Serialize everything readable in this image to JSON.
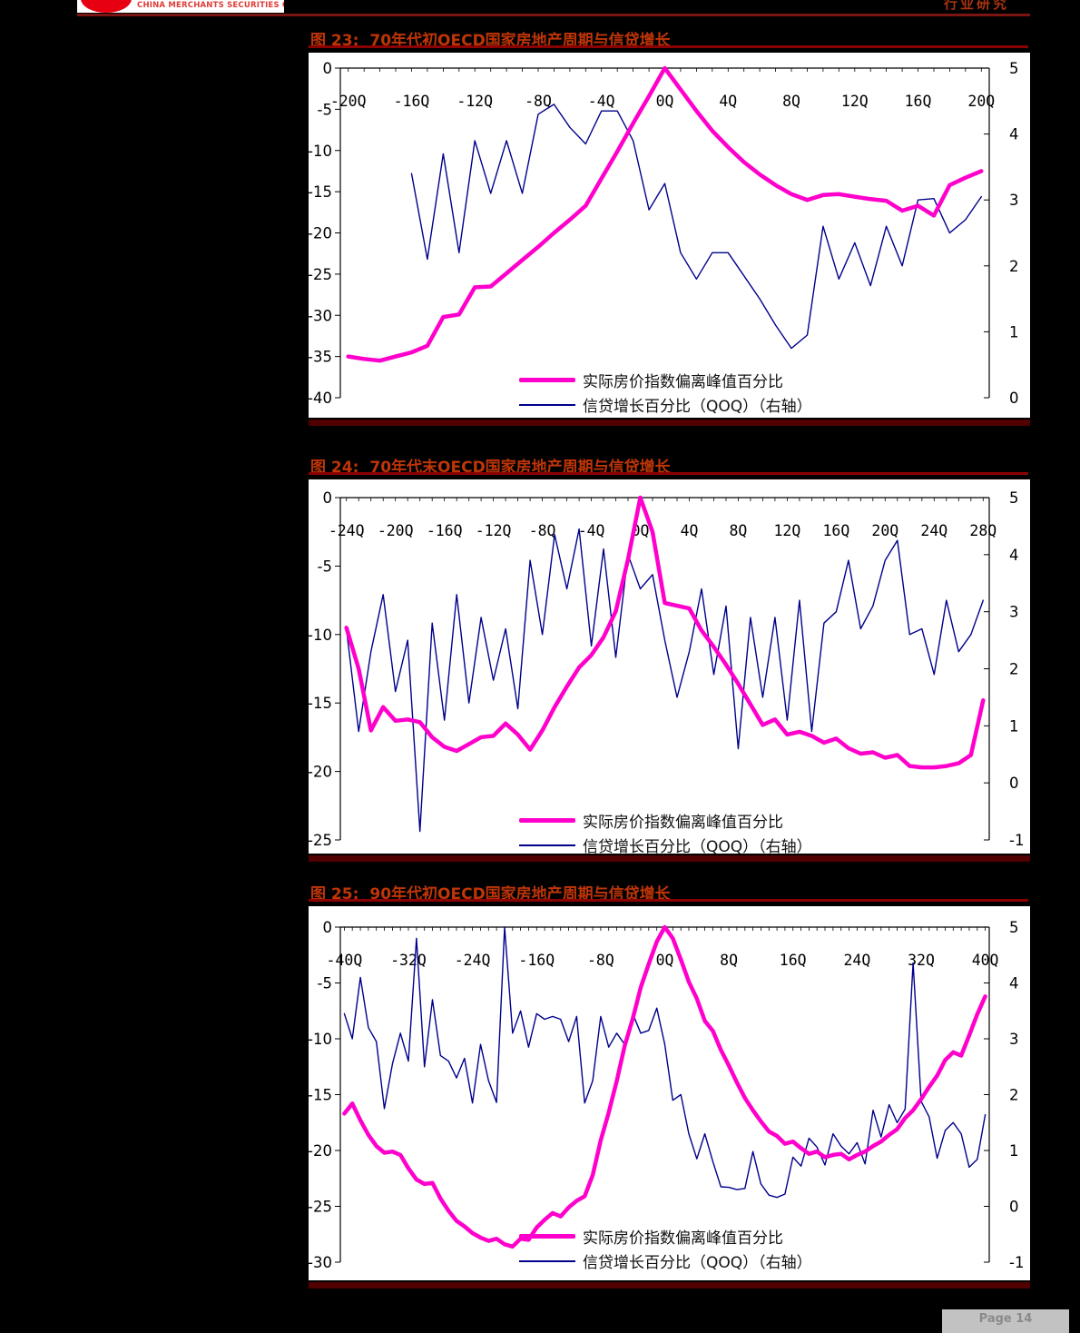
{
  "header": {
    "company": "CHINA MERCHANTS SECURITIES CO., LTD.",
    "category": "行业研究"
  },
  "footer": {
    "page_label": "Page 14"
  },
  "legend": {
    "price": "实际房价指数偏离峰值百分比",
    "credit": "信贷增长百分比（QOQ）（右轴）"
  },
  "colors": {
    "price": "#FF00CC",
    "credit": "#00008B",
    "title": "#BF3506",
    "rule_dark": "#8B0000",
    "header_rule": "#7A1513",
    "bar": "#500000",
    "logo": "#E60012",
    "company_text": "#E03C36",
    "category_text": "#A83410",
    "chart_bg": "#FFFFFF",
    "page_bg": "#000000",
    "footer_box_bg": "#C2C2C2",
    "footer_box_text": "#8A8A8A"
  },
  "chart_data": [
    {
      "type": "line",
      "figure_label": "图 23:",
      "title": "70年代初OECD国家房地产周期与信贷增长",
      "x_unit": "quarter",
      "x_min": -20,
      "x_max": 20,
      "x_ticks": [
        "-20Q",
        "-16Q",
        "-12Q",
        "-8Q",
        "-4Q",
        "0Q",
        "4Q",
        "8Q",
        "12Q",
        "16Q",
        "20Q"
      ],
      "left_axis": {
        "max": 0,
        "min": -40,
        "ticks": [
          "0",
          "-5",
          "-10",
          "-15",
          "-20",
          "-25",
          "-30",
          "-35",
          "-40"
        ]
      },
      "right_axis": {
        "max": 5,
        "min": 0,
        "ticks": [
          "5",
          "4",
          "3",
          "2",
          "1",
          "0"
        ]
      },
      "series": [
        {
          "name": "实际房价指数偏离峰值百分比",
          "axis": "left",
          "color_key": "price",
          "x_start": -20,
          "values": [
            -35.0,
            -35.3,
            -35.5,
            -35.0,
            -34.5,
            -33.7,
            -30.2,
            -29.9,
            -26.6,
            -26.5,
            -24.9,
            -23.3,
            -21.7,
            -20.0,
            -18.4,
            -16.7,
            -13.4,
            -10.1,
            -6.7,
            -3.4,
            0.0,
            -2.6,
            -5.2,
            -7.6,
            -9.6,
            -11.4,
            -12.9,
            -14.2,
            -15.3,
            -16.0,
            -15.4,
            -15.3,
            -15.6,
            -15.9,
            -16.1,
            -17.3,
            -16.7,
            -17.9,
            -14.2,
            -13.3,
            -12.5
          ]
        },
        {
          "name": "信贷增长百分比（QOQ）（右轴）",
          "axis": "right",
          "color_key": "credit",
          "x_start": -16,
          "values": [
            3.4,
            2.1,
            3.7,
            2.2,
            3.9,
            3.1,
            3.9,
            3.1,
            4.3,
            4.45,
            4.1,
            3.85,
            4.35,
            4.35,
            3.9,
            2.85,
            3.25,
            2.2,
            1.8,
            2.2,
            2.2,
            1.85,
            1.5,
            1.1,
            0.75,
            0.95,
            2.6,
            1.8,
            2.35,
            1.7,
            2.6,
            2.0,
            3.0,
            3.02,
            2.5,
            2.7,
            3.05
          ]
        }
      ]
    },
    {
      "type": "line",
      "figure_label": "图 24:",
      "title": "70年代末OECD国家房地产周期与信贷增长",
      "x_unit": "quarter",
      "x_min": -24,
      "x_max": 28,
      "x_ticks": [
        "-24Q",
        "-20Q",
        "-16Q",
        "-12Q",
        "-8Q",
        "-4Q",
        "0Q",
        "4Q",
        "8Q",
        "12Q",
        "16Q",
        "20Q",
        "24Q",
        "28Q"
      ],
      "left_axis": {
        "max": 0,
        "min": -25,
        "ticks": [
          "0",
          "-5",
          "-10",
          "-15",
          "-20",
          "-25"
        ]
      },
      "right_axis": {
        "max": 5,
        "min": -1,
        "ticks": [
          "5",
          "4",
          "3",
          "2",
          "1",
          "0",
          "-1"
        ]
      },
      "series": [
        {
          "name": "实际房价指数偏离峰值百分比",
          "axis": "left",
          "color_key": "price",
          "x_start": -24,
          "values": [
            -9.5,
            -12.5,
            -17.0,
            -15.3,
            -16.3,
            -16.2,
            -16.4,
            -17.5,
            -18.2,
            -18.5,
            -18.0,
            -17.5,
            -17.4,
            -16.5,
            -17.3,
            -18.4,
            -17.0,
            -15.3,
            -13.8,
            -12.4,
            -11.5,
            -10.2,
            -8.3,
            -4.5,
            0.0,
            -2.5,
            -7.7,
            -7.9,
            -8.1,
            -9.7,
            -10.9,
            -12.2,
            -13.6,
            -15.1,
            -16.6,
            -16.2,
            -17.3,
            -17.1,
            -17.4,
            -17.9,
            -17.6,
            -18.3,
            -18.7,
            -18.6,
            -19.0,
            -18.8,
            -19.6,
            -19.7,
            -19.7,
            -19.6,
            -19.4,
            -18.8,
            -14.8
          ]
        },
        {
          "name": "信贷增长百分比（QOQ）（右轴）",
          "axis": "right",
          "color_key": "credit",
          "x_start": -24,
          "values": [
            2.7,
            0.9,
            2.3,
            3.3,
            1.6,
            2.5,
            -0.85,
            2.8,
            1.1,
            3.3,
            1.4,
            2.9,
            1.8,
            2.7,
            1.3,
            3.9,
            2.6,
            4.35,
            3.4,
            4.45,
            2.4,
            4.1,
            2.2,
            4.0,
            3.4,
            3.65,
            2.5,
            1.5,
            2.3,
            3.4,
            1.9,
            3.1,
            0.6,
            2.9,
            1.5,
            2.9,
            1.1,
            3.2,
            0.9,
            2.8,
            3.0,
            3.9,
            2.7,
            3.1,
            3.9,
            4.25,
            2.6,
            2.7,
            1.9,
            3.2,
            2.3,
            2.6,
            3.2
          ]
        }
      ]
    },
    {
      "type": "line",
      "figure_label": "图 25:",
      "title": "90年代初OECD国家房地产周期与信贷增长",
      "x_unit": "quarter",
      "x_min": -40,
      "x_max": 40,
      "x_ticks": [
        "-40Q",
        "-32Q",
        "-24Q",
        "-16Q",
        "-8Q",
        "0Q",
        "8Q",
        "16Q",
        "24Q",
        "32Q",
        "40Q"
      ],
      "left_axis": {
        "max": 0,
        "min": -30,
        "ticks": [
          "0",
          "-5",
          "-10",
          "-15",
          "-20",
          "-25",
          "-30"
        ]
      },
      "right_axis": {
        "max": 5,
        "min": -1,
        "ticks": [
          "5",
          "4",
          "3",
          "2",
          "1",
          "0",
          "-1"
        ]
      },
      "series": [
        {
          "name": "实际房价指数偏离峰值百分比",
          "axis": "left",
          "color_key": "price",
          "x_start": -40,
          "values": [
            -16.7,
            -15.8,
            -17.3,
            -18.6,
            -19.6,
            -20.2,
            -20.1,
            -20.4,
            -21.6,
            -22.6,
            -23.0,
            -22.9,
            -24.3,
            -25.4,
            -26.3,
            -26.8,
            -27.4,
            -27.8,
            -28.1,
            -27.9,
            -28.4,
            -28.6,
            -27.9,
            -28.0,
            -26.9,
            -26.2,
            -25.6,
            -25.9,
            -25.1,
            -24.5,
            -24.1,
            -22.2,
            -19.1,
            -16.6,
            -13.8,
            -10.6,
            -8.2,
            -5.4,
            -3.3,
            -1.3,
            0.0,
            -1.0,
            -2.9,
            -4.9,
            -6.4,
            -8.4,
            -9.3,
            -11.0,
            -12.4,
            -13.9,
            -15.3,
            -16.4,
            -17.4,
            -18.3,
            -18.7,
            -19.4,
            -19.2,
            -19.8,
            -20.3,
            -20.1,
            -20.6,
            -20.4,
            -20.3,
            -20.8,
            -20.4,
            -20.1,
            -19.6,
            -19.2,
            -18.6,
            -18.1,
            -17.1,
            -16.4,
            -15.4,
            -14.3,
            -13.3,
            -11.9,
            -11.2,
            -11.5,
            -9.7,
            -7.8,
            -6.2
          ]
        },
        {
          "name": "信贷增长百分比（QOQ）（右轴）",
          "axis": "right",
          "color_key": "credit",
          "x_start": -40,
          "values": [
            3.45,
            3.0,
            4.1,
            3.2,
            2.95,
            1.75,
            2.55,
            3.1,
            2.6,
            4.8,
            2.5,
            3.7,
            2.7,
            2.6,
            2.3,
            2.65,
            1.85,
            2.9,
            2.25,
            1.86,
            5.0,
            3.1,
            3.5,
            2.85,
            3.45,
            3.35,
            3.4,
            3.35,
            2.95,
            3.4,
            1.85,
            2.25,
            3.4,
            2.85,
            3.1,
            2.9,
            3.45,
            3.1,
            3.15,
            3.55,
            2.9,
            1.9,
            2.0,
            1.3,
            0.85,
            1.3,
            0.8,
            0.35,
            0.34,
            0.3,
            0.32,
            0.98,
            0.4,
            0.2,
            0.16,
            0.22,
            0.88,
            0.72,
            1.22,
            1.06,
            0.74,
            1.3,
            1.08,
            0.94,
            1.14,
            0.76,
            1.72,
            1.24,
            1.82,
            1.5,
            1.74,
            4.36,
            1.88,
            1.6,
            0.86,
            1.36,
            1.5,
            1.3,
            0.7,
            0.84,
            1.64
          ]
        }
      ]
    }
  ]
}
